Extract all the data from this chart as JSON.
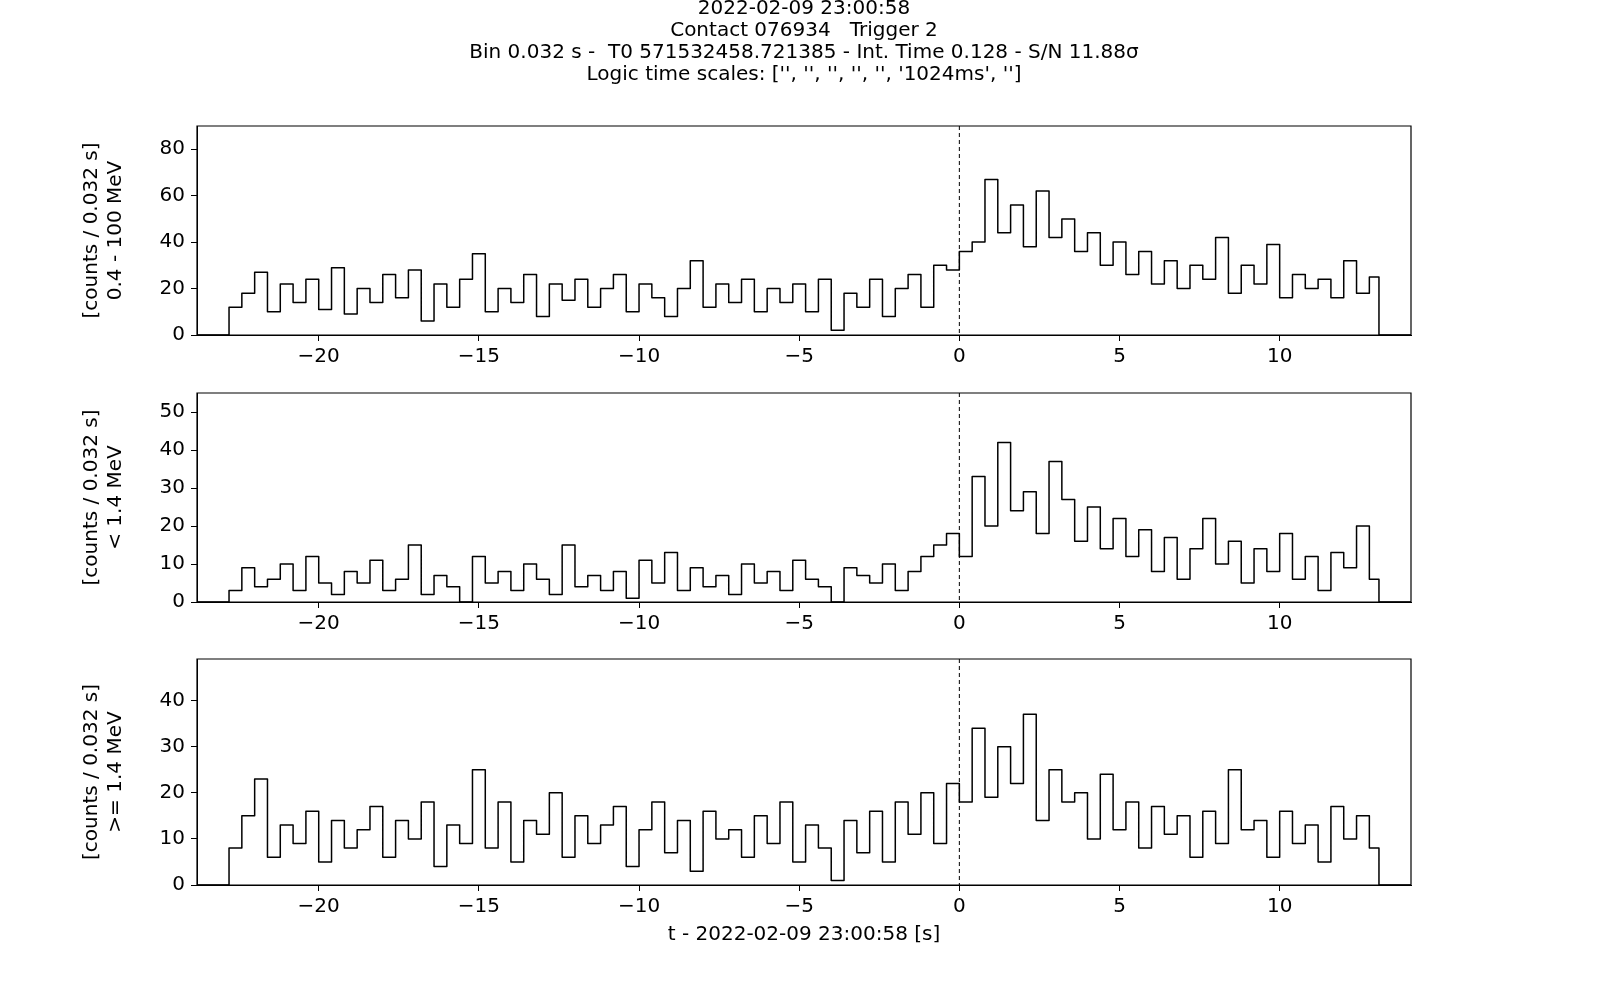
{
  "chart_data": [
    {
      "type": "step",
      "title": "2022-02-09 23:00:58\nContact 076934   Trigger 2\nBin 0.032 s -  T0 571532458.721385 - Int. Time 0.128 - S/N 11.88σ\nLogic time scales: ['', '', '', '', '', '1024ms', '']",
      "ylabel": "[counts / 0.032 s]\n0.4 - 100 MeV",
      "x": [
        -23.8,
        -22.8,
        -22.4,
        -22.0,
        -21.6,
        -21.2,
        -20.8,
        -20.4,
        -20.0,
        -19.6,
        -19.2,
        -18.8,
        -18.4,
        -18.0,
        -17.6,
        -17.2,
        -16.8,
        -16.4,
        -16.0,
        -15.6,
        -15.2,
        -14.8,
        -14.4,
        -14.0,
        -13.6,
        -13.2,
        -12.8,
        -12.4,
        -12.0,
        -11.6,
        -11.2,
        -10.8,
        -10.4,
        -10.0,
        -9.6,
        -9.2,
        -8.8,
        -8.4,
        -8.0,
        -7.6,
        -7.2,
        -6.8,
        -6.4,
        -6.0,
        -5.6,
        -5.2,
        -4.8,
        -4.4,
        -4.0,
        -3.6,
        -3.2,
        -2.8,
        -2.4,
        -2.0,
        -1.6,
        -1.2,
        -0.8,
        -0.4,
        0.0,
        0.4,
        0.8,
        1.2,
        1.6,
        2.0,
        2.4,
        2.8,
        3.2,
        3.6,
        4.0,
        4.4,
        4.8,
        5.2,
        5.6,
        6.0,
        6.4,
        6.8,
        7.2,
        7.6,
        8.0,
        8.4,
        8.8,
        9.2,
        9.6,
        10.0,
        10.4,
        10.8,
        11.2,
        11.6,
        12.0,
        12.4,
        12.8,
        13.1,
        14.1
      ],
      "series": [
        {
          "color": "#000000",
          "values": [
            0,
            12,
            18,
            27,
            10,
            22,
            14,
            24,
            11,
            29,
            9,
            20,
            14,
            26,
            16,
            28,
            6,
            22,
            12,
            24,
            35,
            10,
            20,
            14,
            26,
            8,
            22,
            15,
            24,
            12,
            20,
            26,
            10,
            22,
            16,
            8,
            20,
            32,
            12,
            22,
            14,
            24,
            10,
            20,
            14,
            22,
            10,
            24,
            2,
            18,
            12,
            24,
            8,
            20,
            26,
            12,
            30,
            28,
            36,
            40,
            67,
            44,
            56,
            38,
            62,
            42,
            50,
            36,
            44,
            30,
            40,
            26,
            36,
            22,
            32,
            20,
            30,
            24,
            42,
            18,
            30,
            22,
            39,
            16,
            26,
            20,
            24,
            16,
            32,
            18,
            25,
            0,
            0
          ]
        }
      ],
      "xlim": [
        -23.8,
        14.1
      ],
      "xticks": [
        {
          "value": -20,
          "label": "−20"
        },
        {
          "value": -15,
          "label": "−15"
        },
        {
          "value": -10,
          "label": "−10"
        },
        {
          "value": -5,
          "label": "−5"
        },
        0,
        5,
        10
      ],
      "ylim": [
        0,
        90
      ],
      "yticks": [
        0,
        20,
        40,
        60,
        80
      ],
      "ref_lines": [
        {
          "axis": "x",
          "value": 0,
          "color": "#000000",
          "line_style": "dashed"
        }
      ]
    },
    {
      "type": "step",
      "ylabel": "[counts / 0.032 s]\n< 1.4 MeV",
      "x": [
        -23.8,
        -22.8,
        -22.4,
        -22.0,
        -21.6,
        -21.2,
        -20.8,
        -20.4,
        -20.0,
        -19.6,
        -19.2,
        -18.8,
        -18.4,
        -18.0,
        -17.6,
        -17.2,
        -16.8,
        -16.4,
        -16.0,
        -15.6,
        -15.2,
        -14.8,
        -14.4,
        -14.0,
        -13.6,
        -13.2,
        -12.8,
        -12.4,
        -12.0,
        -11.6,
        -11.2,
        -10.8,
        -10.4,
        -10.0,
        -9.6,
        -9.2,
        -8.8,
        -8.4,
        -8.0,
        -7.6,
        -7.2,
        -6.8,
        -6.4,
        -6.0,
        -5.6,
        -5.2,
        -4.8,
        -4.4,
        -4.0,
        -3.6,
        -3.2,
        -2.8,
        -2.4,
        -2.0,
        -1.6,
        -1.2,
        -0.8,
        -0.4,
        0.0,
        0.4,
        0.8,
        1.2,
        1.6,
        2.0,
        2.4,
        2.8,
        3.2,
        3.6,
        4.0,
        4.4,
        4.8,
        5.2,
        5.6,
        6.0,
        6.4,
        6.8,
        7.2,
        7.6,
        8.0,
        8.4,
        8.8,
        9.2,
        9.6,
        10.0,
        10.4,
        10.8,
        11.2,
        11.6,
        12.0,
        12.4,
        12.8,
        13.1,
        14.1
      ],
      "series": [
        {
          "color": "#000000",
          "values": [
            0,
            3,
            9,
            4,
            6,
            10,
            3,
            12,
            5,
            2,
            8,
            5,
            11,
            3,
            6,
            15,
            2,
            7,
            4,
            0,
            12,
            5,
            8,
            3,
            10,
            6,
            2,
            15,
            4,
            7,
            3,
            8,
            1,
            11,
            5,
            13,
            3,
            9,
            4,
            7,
            2,
            10,
            5,
            8,
            3,
            11,
            6,
            4,
            0,
            9,
            7,
            5,
            10,
            3,
            8,
            12,
            15,
            18,
            12,
            33,
            20,
            42,
            24,
            29,
            18,
            37,
            27,
            16,
            25,
            14,
            22,
            12,
            19,
            8,
            17,
            6,
            14,
            22,
            10,
            16,
            5,
            14,
            8,
            18,
            6,
            12,
            3,
            13,
            9,
            20,
            6,
            0,
            0
          ]
        }
      ],
      "xlim": [
        -23.8,
        14.1
      ],
      "xticks": [
        {
          "value": -20,
          "label": "−20"
        },
        {
          "value": -15,
          "label": "−15"
        },
        {
          "value": -10,
          "label": "−10"
        },
        {
          "value": -5,
          "label": "−5"
        },
        0,
        5,
        10
      ],
      "ylim": [
        0,
        55
      ],
      "yticks": [
        0,
        10,
        20,
        30,
        40,
        50
      ],
      "ref_lines": [
        {
          "axis": "x",
          "value": 0,
          "color": "#000000",
          "line_style": "dashed"
        }
      ]
    },
    {
      "type": "step",
      "ylabel": "[counts / 0.032 s]\n>= 1.4 MeV",
      "xlabel": "t - 2022-02-09 23:00:58 [s]",
      "x": [
        -23.8,
        -22.8,
        -22.4,
        -22.0,
        -21.6,
        -21.2,
        -20.8,
        -20.4,
        -20.0,
        -19.6,
        -19.2,
        -18.8,
        -18.4,
        -18.0,
        -17.6,
        -17.2,
        -16.8,
        -16.4,
        -16.0,
        -15.6,
        -15.2,
        -14.8,
        -14.4,
        -14.0,
        -13.6,
        -13.2,
        -12.8,
        -12.4,
        -12.0,
        -11.6,
        -11.2,
        -10.8,
        -10.4,
        -10.0,
        -9.6,
        -9.2,
        -8.8,
        -8.4,
        -8.0,
        -7.6,
        -7.2,
        -6.8,
        -6.4,
        -6.0,
        -5.6,
        -5.2,
        -4.8,
        -4.4,
        -4.0,
        -3.6,
        -3.2,
        -2.8,
        -2.4,
        -2.0,
        -1.6,
        -1.2,
        -0.8,
        -0.4,
        0.0,
        0.4,
        0.8,
        1.2,
        1.6,
        2.0,
        2.4,
        2.8,
        3.2,
        3.6,
        4.0,
        4.4,
        4.8,
        5.2,
        5.6,
        6.0,
        6.4,
        6.8,
        7.2,
        7.6,
        8.0,
        8.4,
        8.8,
        9.2,
        9.6,
        10.0,
        10.4,
        10.8,
        11.2,
        11.6,
        12.0,
        12.4,
        12.8,
        13.1,
        14.1
      ],
      "series": [
        {
          "color": "#000000",
          "values": [
            0,
            8,
            15,
            23,
            6,
            13,
            9,
            16,
            5,
            14,
            8,
            12,
            17,
            6,
            14,
            10,
            18,
            4,
            13,
            9,
            25,
            8,
            18,
            5,
            14,
            11,
            20,
            6,
            15,
            9,
            13,
            17,
            4,
            12,
            18,
            7,
            14,
            3,
            16,
            10,
            12,
            6,
            15,
            9,
            18,
            5,
            13,
            8,
            1,
            14,
            7,
            16,
            5,
            18,
            11,
            20,
            9,
            22,
            18,
            34,
            19,
            30,
            22,
            37,
            14,
            25,
            18,
            20,
            10,
            24,
            12,
            18,
            8,
            17,
            11,
            15,
            6,
            16,
            9,
            25,
            12,
            14,
            6,
            16,
            9,
            13,
            5,
            17,
            10,
            15,
            8,
            0,
            0
          ]
        }
      ],
      "xlim": [
        -23.8,
        14.1
      ],
      "xticks": [
        {
          "value": -20,
          "label": "−20"
        },
        {
          "value": -15,
          "label": "−15"
        },
        {
          "value": -10,
          "label": "−10"
        },
        {
          "value": -5,
          "label": "−5"
        },
        0,
        5,
        10
      ],
      "ylim": [
        0,
        49
      ],
      "yticks": [
        0,
        10,
        20,
        30,
        40
      ],
      "ref_lines": [
        {
          "axis": "x",
          "value": 0,
          "color": "#000000",
          "line_style": "dashed"
        }
      ]
    }
  ]
}
